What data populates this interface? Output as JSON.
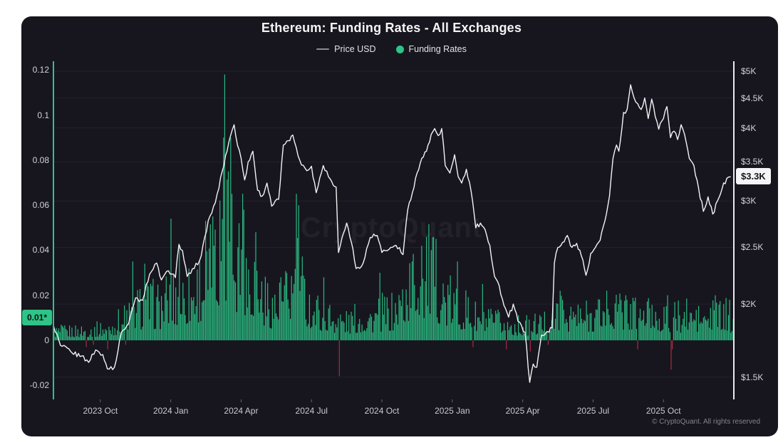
{
  "page": {
    "title": "Ethereum: Funding Rates - All Exchanges",
    "watermark": "CryptoQuant",
    "footer": "© CryptoQuant. All rights reserved"
  },
  "legend": {
    "price": "Price USD",
    "funding": "Funding Rates"
  },
  "badges": {
    "funding": {
      "label": "0.01*",
      "value": 0.01
    },
    "price": {
      "label": "$3.3K",
      "value": 3300
    }
  },
  "colors": {
    "panel_bg": "#17161f",
    "green": "#2ec487",
    "bar_green": "#2bb980",
    "bar_red": "#a82c3f",
    "price_line": "#f3f3f5",
    "grid": "rgba(255,255,255,0.05)",
    "right_axis_line": "#e9e9ee"
  },
  "chart_data": {
    "type": "line+bar",
    "title": "Ethereum: Funding Rates - All Exchanges",
    "x_unit": "months since 2023-08-01",
    "x_range": [
      0,
      29
    ],
    "grid": "horizontal-only",
    "legend_position": "top-center",
    "axes": {
      "left": {
        "name": "Funding Rates",
        "scale": "linear",
        "range": [
          -0.025,
          0.125
        ],
        "ticks": [
          {
            "label": "0.12",
            "value": 0.12
          },
          {
            "label": "0.1",
            "value": 0.1
          },
          {
            "label": "0.08",
            "value": 0.08
          },
          {
            "label": "0.06",
            "value": 0.06
          },
          {
            "label": "0.04",
            "value": 0.04
          },
          {
            "label": "0.02",
            "value": 0.02
          },
          {
            "label": "0",
            "value": 0
          },
          {
            "label": "-0.02",
            "value": -0.02
          }
        ]
      },
      "right": {
        "name": "Price USD",
        "scale": "log",
        "range": [
          1400,
          5300
        ],
        "ticks": [
          {
            "label": "$5K",
            "value": 5000
          },
          {
            "label": "$4.5K",
            "value": 4500
          },
          {
            "label": "$4K",
            "value": 4000
          },
          {
            "label": "$3.5K",
            "value": 3500
          },
          {
            "label": "$3K",
            "value": 3000
          },
          {
            "label": "$2.5K",
            "value": 2500
          },
          {
            "label": "$2K",
            "value": 2000
          },
          {
            "label": "$1.5K",
            "value": 1500
          }
        ]
      },
      "x": {
        "ticks": [
          {
            "label": "2023 Oct",
            "m": 2
          },
          {
            "label": "2024 Jan",
            "m": 5
          },
          {
            "label": "2024 Apr",
            "m": 8
          },
          {
            "label": "2024 Jul",
            "m": 11
          },
          {
            "label": "2024 Oct",
            "m": 14
          },
          {
            "label": "2025 Jan",
            "m": 17
          },
          {
            "label": "2025 Apr",
            "m": 20
          },
          {
            "label": "2025 Jul",
            "m": 23
          },
          {
            "label": "2025 Oct",
            "m": 26
          }
        ]
      }
    },
    "current": {
      "price": 3300,
      "funding": 0.01
    },
    "series": [
      {
        "name": "Price USD",
        "type": "line",
        "axis": "right",
        "color": "#f3f3f5",
        "points": [
          [
            0,
            1840
          ],
          [
            0.3,
            1700
          ],
          [
            0.8,
            1650
          ],
          [
            1.2,
            1630
          ],
          [
            1.5,
            1590
          ],
          [
            1.8,
            1670
          ],
          [
            2.1,
            1640
          ],
          [
            2.3,
            1550
          ],
          [
            2.6,
            1560
          ],
          [
            2.9,
            1790
          ],
          [
            3.2,
            1850
          ],
          [
            3.5,
            2050
          ],
          [
            3.8,
            2030
          ],
          [
            4.1,
            2250
          ],
          [
            4.4,
            2350
          ],
          [
            4.6,
            2200
          ],
          [
            4.9,
            2280
          ],
          [
            5.2,
            2220
          ],
          [
            5.35,
            2530
          ],
          [
            5.5,
            2470
          ],
          [
            5.7,
            2230
          ],
          [
            6,
            2300
          ],
          [
            6.3,
            2420
          ],
          [
            6.6,
            2780
          ],
          [
            6.9,
            2980
          ],
          [
            7.2,
            3380
          ],
          [
            7.4,
            3650
          ],
          [
            7.55,
            3880
          ],
          [
            7.7,
            4050
          ],
          [
            7.85,
            3730
          ],
          [
            8,
            3550
          ],
          [
            8.15,
            3260
          ],
          [
            8.3,
            3500
          ],
          [
            8.5,
            3650
          ],
          [
            8.7,
            3130
          ],
          [
            8.9,
            3060
          ],
          [
            9.1,
            3220
          ],
          [
            9.3,
            2940
          ],
          [
            9.6,
            3020
          ],
          [
            9.8,
            3740
          ],
          [
            9.95,
            3800
          ],
          [
            10.2,
            3890
          ],
          [
            10.5,
            3520
          ],
          [
            10.8,
            3380
          ],
          [
            11,
            3440
          ],
          [
            11.2,
            3100
          ],
          [
            11.5,
            3450
          ],
          [
            11.8,
            3270
          ],
          [
            12.05,
            3170
          ],
          [
            12.15,
            2450
          ],
          [
            12.3,
            2600
          ],
          [
            12.5,
            2750
          ],
          [
            12.7,
            2550
          ],
          [
            12.9,
            2300
          ],
          [
            13.2,
            2350
          ],
          [
            13.5,
            2600
          ],
          [
            13.8,
            2620
          ],
          [
            14,
            2450
          ],
          [
            14.3,
            2480
          ],
          [
            14.6,
            2520
          ],
          [
            14.9,
            2430
          ],
          [
            15.1,
            2900
          ],
          [
            15.3,
            3100
          ],
          [
            15.5,
            3350
          ],
          [
            15.7,
            3550
          ],
          [
            15.9,
            3650
          ],
          [
            16.1,
            3900
          ],
          [
            16.25,
            3990
          ],
          [
            16.4,
            3880
          ],
          [
            16.55,
            3990
          ],
          [
            16.7,
            3450
          ],
          [
            16.9,
            3350
          ],
          [
            17.1,
            3600
          ],
          [
            17.25,
            3300
          ],
          [
            17.4,
            3220
          ],
          [
            17.6,
            3400
          ],
          [
            17.8,
            3120
          ],
          [
            18,
            2700
          ],
          [
            18.2,
            2750
          ],
          [
            18.4,
            2680
          ],
          [
            18.6,
            2520
          ],
          [
            18.8,
            2230
          ],
          [
            19,
            2150
          ],
          [
            19.2,
            1990
          ],
          [
            19.4,
            1900
          ],
          [
            19.6,
            2000
          ],
          [
            19.8,
            1870
          ],
          [
            20.1,
            1790
          ],
          [
            20.3,
            1470
          ],
          [
            20.45,
            1580
          ],
          [
            20.6,
            1560
          ],
          [
            20.8,
            1770
          ],
          [
            21,
            1790
          ],
          [
            21.25,
            1820
          ],
          [
            21.35,
            2350
          ],
          [
            21.5,
            2500
          ],
          [
            21.7,
            2550
          ],
          [
            21.9,
            2620
          ],
          [
            22.1,
            2500
          ],
          [
            22.3,
            2540
          ],
          [
            22.5,
            2420
          ],
          [
            22.7,
            2240
          ],
          [
            22.9,
            2440
          ],
          [
            23.1,
            2500
          ],
          [
            23.3,
            2570
          ],
          [
            23.5,
            2770
          ],
          [
            23.7,
            3060
          ],
          [
            23.85,
            3550
          ],
          [
            24,
            3740
          ],
          [
            24.1,
            3650
          ],
          [
            24.3,
            4250
          ],
          [
            24.45,
            4300
          ],
          [
            24.6,
            4740
          ],
          [
            24.75,
            4500
          ],
          [
            24.9,
            4400
          ],
          [
            25.05,
            4300
          ],
          [
            25.2,
            4500
          ],
          [
            25.35,
            4150
          ],
          [
            25.5,
            4480
          ],
          [
            25.65,
            4180
          ],
          [
            25.8,
            3980
          ],
          [
            26,
            4150
          ],
          [
            26.15,
            4350
          ],
          [
            26.3,
            3850
          ],
          [
            26.45,
            3950
          ],
          [
            26.6,
            3820
          ],
          [
            26.75,
            4050
          ],
          [
            26.9,
            3900
          ],
          [
            27.1,
            3550
          ],
          [
            27.3,
            3450
          ],
          [
            27.5,
            3150
          ],
          [
            27.7,
            2880
          ],
          [
            27.9,
            3050
          ],
          [
            28.1,
            2850
          ],
          [
            28.3,
            3000
          ],
          [
            28.5,
            3150
          ],
          [
            28.7,
            3280
          ],
          [
            28.85,
            3300
          ]
        ]
      },
      {
        "name": "Funding Rates",
        "type": "bar",
        "axis": "left",
        "color": "#2bb980",
        "negative_color": "#a82c3f",
        "note": "dense daily bars; envelope = typical positive magnitude over time (estimated), spikes/negative_spikes = notable extreme bars",
        "envelope": [
          [
            0,
            0.004
          ],
          [
            1,
            0.004
          ],
          [
            2,
            0.005
          ],
          [
            2.5,
            0.006
          ],
          [
            3,
            0.01
          ],
          [
            3.5,
            0.014
          ],
          [
            4,
            0.016
          ],
          [
            4.5,
            0.015
          ],
          [
            5,
            0.018
          ],
          [
            5.5,
            0.02
          ],
          [
            6,
            0.022
          ],
          [
            6.5,
            0.028
          ],
          [
            7,
            0.032
          ],
          [
            7.3,
            0.045
          ],
          [
            7.6,
            0.05
          ],
          [
            7.8,
            0.038
          ],
          [
            8.2,
            0.03
          ],
          [
            8.5,
            0.03
          ],
          [
            9,
            0.018
          ],
          [
            9.5,
            0.015
          ],
          [
            10,
            0.02
          ],
          [
            10.4,
            0.028
          ],
          [
            10.7,
            0.02
          ],
          [
            11,
            0.014
          ],
          [
            11.5,
            0.012
          ],
          [
            12,
            0.01
          ],
          [
            12.5,
            0.008
          ],
          [
            13,
            0.01
          ],
          [
            13.5,
            0.01
          ],
          [
            14,
            0.012
          ],
          [
            14.5,
            0.012
          ],
          [
            15,
            0.02
          ],
          [
            15.5,
            0.028
          ],
          [
            16,
            0.03
          ],
          [
            16.3,
            0.026
          ],
          [
            16.7,
            0.018
          ],
          [
            17,
            0.016
          ],
          [
            17.5,
            0.014
          ],
          [
            18,
            0.01
          ],
          [
            18.5,
            0.008
          ],
          [
            19,
            0.008
          ],
          [
            19.5,
            0.007
          ],
          [
            20,
            0.006
          ],
          [
            20.5,
            0.007
          ],
          [
            21,
            0.008
          ],
          [
            21.5,
            0.012
          ],
          [
            22,
            0.012
          ],
          [
            22.5,
            0.01
          ],
          [
            23,
            0.012
          ],
          [
            23.5,
            0.013
          ],
          [
            24,
            0.014
          ],
          [
            24.5,
            0.013
          ],
          [
            25,
            0.012
          ],
          [
            25.5,
            0.012
          ],
          [
            26,
            0.011
          ],
          [
            26.5,
            0.01
          ],
          [
            27,
            0.011
          ],
          [
            27.5,
            0.01
          ],
          [
            28,
            0.01
          ],
          [
            28.5,
            0.011
          ],
          [
            29,
            0.01
          ]
        ],
        "spikes": [
          [
            3.4,
            0.035
          ],
          [
            3.9,
            0.034
          ],
          [
            5,
            0.054
          ],
          [
            5.35,
            0.042
          ],
          [
            6.5,
            0.053
          ],
          [
            6.8,
            0.055
          ],
          [
            7.1,
            0.062
          ],
          [
            7.25,
            0.09
          ],
          [
            7.32,
            0.118
          ],
          [
            7.45,
            0.075
          ],
          [
            7.55,
            0.09
          ],
          [
            7.62,
            0.065
          ],
          [
            7.9,
            0.052
          ],
          [
            8.05,
            0.065
          ],
          [
            8.1,
            0.058
          ],
          [
            8.6,
            0.048
          ],
          [
            9.7,
            0.028
          ],
          [
            10.35,
            0.065
          ],
          [
            10.45,
            0.06
          ],
          [
            11.5,
            0.028
          ],
          [
            13.9,
            0.03
          ],
          [
            15.3,
            0.035
          ],
          [
            15.7,
            0.042
          ],
          [
            15.9,
            0.046
          ],
          [
            16.1,
            0.04
          ],
          [
            17.2,
            0.035
          ],
          [
            18.3,
            0.025
          ],
          [
            21.6,
            0.022
          ],
          [
            23.6,
            0.022
          ],
          [
            24.4,
            0.02
          ],
          [
            26.2,
            0.02
          ],
          [
            28.2,
            0.02
          ],
          [
            28.8,
            0.018
          ]
        ],
        "negative_spikes": [
          [
            1.4,
            -0.003
          ],
          [
            1.7,
            -0.002
          ],
          [
            2.3,
            -0.004
          ],
          [
            3.1,
            -0.002
          ],
          [
            12.17,
            -0.016
          ],
          [
            17.9,
            -0.003
          ],
          [
            19.3,
            -0.004
          ],
          [
            20.35,
            -0.005
          ],
          [
            21.1,
            -0.002
          ],
          [
            24.9,
            -0.004
          ],
          [
            26.32,
            -0.013
          ],
          [
            26.4,
            -0.004
          ]
        ]
      }
    ]
  }
}
